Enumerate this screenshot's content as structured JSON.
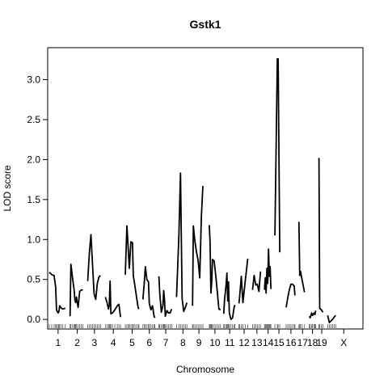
{
  "chart_data": {
    "type": "line",
    "title": "Gstk1",
    "xlabel": "Chromosome",
    "ylabel": "LOD score",
    "ylim": [
      -0.12,
      3.4
    ],
    "yticks": [
      0.0,
      0.5,
      1.0,
      1.5,
      2.0,
      2.5,
      3.0
    ],
    "ytick_labels": [
      "0.0",
      "0.5",
      "1.0",
      "1.5",
      "2.0",
      "2.5",
      "3.0"
    ],
    "xlim": [
      -2,
      392
    ],
    "grid": false,
    "legend": "none",
    "line_color": "#000000",
    "chromosomes": [
      {
        "label": "1",
        "start": 0,
        "end": 22,
        "points": [
          [
            0,
            0.59
          ],
          [
            3,
            0.56
          ],
          [
            6,
            0.55
          ],
          [
            8,
            0.4
          ],
          [
            9,
            0.12
          ],
          [
            11,
            0.08
          ],
          [
            12,
            0.1
          ],
          [
            13,
            0.17
          ],
          [
            15,
            0.14
          ],
          [
            17,
            0.13
          ],
          [
            20,
            0.14
          ]
        ]
      },
      {
        "label": "2",
        "start": 25,
        "end": 45,
        "points": [
          [
            26,
            0.04
          ],
          [
            27,
            0.69
          ],
          [
            29,
            0.52
          ],
          [
            31,
            0.37
          ],
          [
            32,
            0.24
          ],
          [
            33,
            0.21
          ],
          [
            34,
            0.28
          ],
          [
            36,
            0.15
          ],
          [
            38,
            0.35
          ],
          [
            40,
            0.37
          ],
          [
            42,
            0.37
          ]
        ]
      },
      {
        "label": "3",
        "start": 47,
        "end": 66,
        "points": [
          [
            48,
            0.48
          ],
          [
            50,
            0.82
          ],
          [
            52,
            1.06
          ],
          [
            54,
            0.7
          ],
          [
            56,
            0.32
          ],
          [
            58,
            0.25
          ],
          [
            60,
            0.45
          ],
          [
            62,
            0.53
          ],
          [
            64,
            0.55
          ]
        ]
      },
      {
        "label": "4",
        "start": 69,
        "end": 91,
        "points": [
          [
            70,
            0.28
          ],
          [
            72,
            0.22
          ],
          [
            74,
            0.13
          ],
          [
            75,
            0.18
          ],
          [
            76,
            0.48
          ],
          [
            77,
            0.07
          ],
          [
            79,
            0.08
          ],
          [
            82,
            0.12
          ],
          [
            85,
            0.17
          ],
          [
            87,
            0.19
          ],
          [
            89,
            0.03
          ]
        ]
      },
      {
        "label": "5",
        "start": 94,
        "end": 113,
        "points": [
          [
            95,
            0.56
          ],
          [
            97,
            1.17
          ],
          [
            99,
            0.82
          ],
          [
            100,
            0.64
          ],
          [
            102,
            0.97
          ],
          [
            104,
            0.96
          ],
          [
            105,
            0.55
          ],
          [
            107,
            0.42
          ],
          [
            109,
            0.28
          ],
          [
            111,
            0.15
          ],
          [
            112,
            0.13
          ]
        ]
      },
      {
        "label": "6",
        "start": 116,
        "end": 134,
        "points": [
          [
            117,
            0.25
          ],
          [
            119,
            0.5
          ],
          [
            120,
            0.66
          ],
          [
            122,
            0.5
          ],
          [
            124,
            0.47
          ],
          [
            125,
            0.2
          ],
          [
            127,
            0.12
          ],
          [
            129,
            0.17
          ],
          [
            131,
            0.04
          ],
          [
            132,
            0.02
          ]
        ]
      },
      {
        "label": "7",
        "start": 136,
        "end": 155,
        "points": [
          [
            137,
            0.54
          ],
          [
            138,
            0.33
          ],
          [
            140,
            0.09
          ],
          [
            142,
            0.17
          ],
          [
            143,
            0.36
          ],
          [
            144,
            0.25
          ],
          [
            145,
            0.04
          ],
          [
            147,
            0.11
          ],
          [
            149,
            0.08
          ],
          [
            151,
            0.08
          ],
          [
            153,
            0.13
          ]
        ]
      },
      {
        "label": "8",
        "start": 158,
        "end": 176,
        "points": [
          [
            159,
            0.28
          ],
          [
            162,
            1.05
          ],
          [
            164,
            1.83
          ],
          [
            166,
            0.26
          ],
          [
            168,
            0.1
          ],
          [
            170,
            0.15
          ],
          [
            172,
            0.21
          ]
        ]
      },
      {
        "label": "9",
        "start": 178,
        "end": 196,
        "points": [
          [
            179,
            0.17
          ],
          [
            180,
            1.17
          ],
          [
            182,
            0.98
          ],
          [
            184,
            0.84
          ],
          [
            186,
            0.74
          ],
          [
            188,
            0.52
          ],
          [
            190,
            1.28
          ],
          [
            192,
            1.67
          ]
        ]
      },
      {
        "label": "10",
        "start": 199,
        "end": 215,
        "points": [
          [
            200,
            1.18
          ],
          [
            201,
            0.96
          ],
          [
            202,
            0.33
          ],
          [
            203,
            0.46
          ],
          [
            204,
            0.75
          ],
          [
            206,
            0.73
          ],
          [
            208,
            0.55
          ],
          [
            210,
            0.35
          ],
          [
            212,
            0.13
          ],
          [
            214,
            0.12
          ]
        ]
      },
      {
        "label": "11",
        "start": 217,
        "end": 234,
        "points": [
          [
            218,
            0.07
          ],
          [
            219,
            0.25
          ],
          [
            221,
            0.43
          ],
          [
            222,
            0.58
          ],
          [
            223,
            0.23
          ],
          [
            224,
            0.47
          ],
          [
            225,
            0.08
          ],
          [
            227,
            0.0
          ],
          [
            229,
            0.02
          ],
          [
            231,
            0.15
          ],
          [
            232,
            0.18
          ]
        ]
      },
      {
        "label": "12",
        "start": 236,
        "end": 251,
        "points": [
          [
            237,
            0.2
          ],
          [
            238,
            0.3
          ],
          [
            240,
            0.54
          ],
          [
            242,
            0.21
          ],
          [
            245,
            0.49
          ],
          [
            248,
            0.76
          ]
        ]
      },
      {
        "label": "13",
        "start": 253,
        "end": 266,
        "points": [
          [
            254,
            0.37
          ],
          [
            256,
            0.55
          ],
          [
            258,
            0.43
          ],
          [
            260,
            0.44
          ],
          [
            262,
            0.35
          ],
          [
            264,
            0.6
          ]
        ]
      },
      {
        "label": "14",
        "start": 268,
        "end": 279,
        "points": [
          [
            269,
            0.37
          ],
          [
            270,
            0.52
          ],
          [
            271,
            0.33
          ],
          [
            272,
            0.64
          ],
          [
            273,
            0.45
          ],
          [
            274,
            0.88
          ],
          [
            275,
            0.54
          ],
          [
            276,
            0.66
          ],
          [
            277,
            0.38
          ]
        ]
      },
      {
        "label": "15",
        "start": 281,
        "end": 293,
        "points": [
          [
            282,
            1.05
          ],
          [
            285,
            3.26
          ],
          [
            286,
            3.26
          ],
          [
            288,
            0.84
          ]
        ]
      },
      {
        "label": "16",
        "start": 295,
        "end": 309,
        "points": [
          [
            296,
            0.15
          ],
          [
            298,
            0.27
          ],
          [
            300,
            0.37
          ],
          [
            302,
            0.44
          ],
          [
            304,
            0.44
          ],
          [
            306,
            0.42
          ],
          [
            307,
            0.3
          ]
        ]
      },
      {
        "label": "17",
        "start": 311,
        "end": 322,
        "points": [
          [
            312,
            1.22
          ],
          [
            313,
            0.55
          ],
          [
            314,
            0.6
          ],
          [
            316,
            0.49
          ],
          [
            319,
            0.34
          ]
        ]
      },
      {
        "label": "18",
        "start": 324,
        "end": 334,
        "points": [
          [
            325,
            0.04
          ],
          [
            326,
            0.02
          ],
          [
            328,
            0.08
          ],
          [
            329,
            0.05
          ],
          [
            331,
            0.08
          ],
          [
            332,
            0.06
          ],
          [
            333,
            0.11
          ]
        ]
      },
      {
        "label": "19",
        "start": 336,
        "end": 345,
        "points": [
          [
            337,
            2.02
          ],
          [
            338,
            0.14
          ],
          [
            340,
            0.12
          ],
          [
            342,
            0.09
          ]
        ]
      },
      {
        "label": "X",
        "start": 347,
        "end": 389,
        "points": [
          [
            348,
            0.05
          ],
          [
            350,
            -0.04
          ],
          [
            352,
            -0.02
          ],
          [
            354,
            0.0
          ],
          [
            356,
            0.03
          ],
          [
            358,
            0.05
          ]
        ]
      }
    ]
  }
}
